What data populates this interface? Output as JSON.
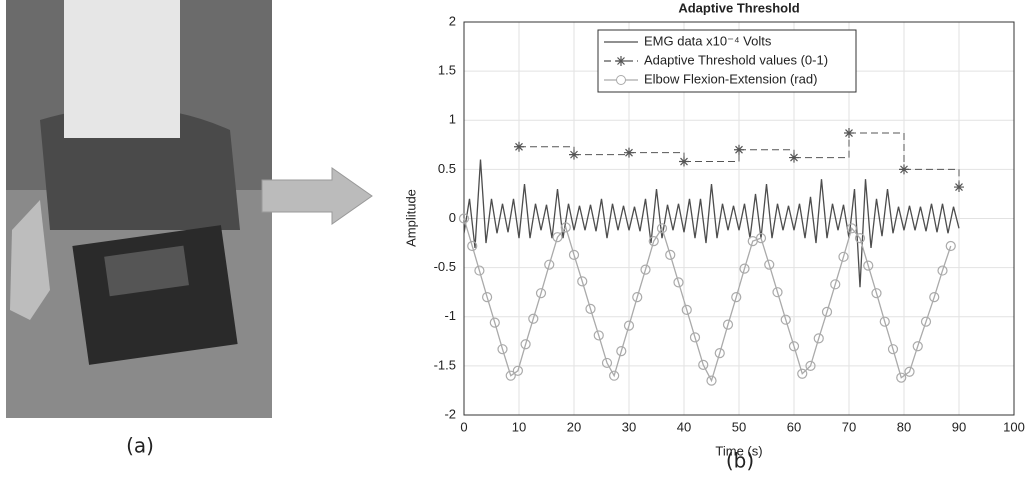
{
  "panel_labels": [
    "(a)",
    "(b)"
  ],
  "chart_data": {
    "type": "line",
    "title": "Adaptive Threshold",
    "xlabel": "Time (s)",
    "ylabel": "Amplitude",
    "xlim": [
      0,
      100
    ],
    "ylim": [
      -2,
      2
    ],
    "xticks": [
      0,
      10,
      20,
      30,
      40,
      50,
      60,
      70,
      80,
      90,
      100
    ],
    "yticks": [
      -2,
      -1.5,
      -1,
      -0.5,
      0,
      0.5,
      1,
      1.5,
      2
    ],
    "grid": true,
    "legend": "top",
    "series": [
      {
        "name": "EMG data x10⁻⁴ Volts",
        "color": "#4d4d4d",
        "style": "line",
        "x": [
          0,
          1,
          2,
          3,
          4,
          5,
          6,
          7,
          8,
          9,
          10,
          11,
          12,
          13,
          14,
          15,
          16,
          17,
          18,
          19,
          20,
          21,
          22,
          23,
          24,
          25,
          26,
          27,
          28,
          29,
          30,
          31,
          32,
          33,
          34,
          35,
          36,
          37,
          38,
          39,
          40,
          41,
          42,
          43,
          44,
          45,
          46,
          47,
          48,
          49,
          50,
          51,
          52,
          53,
          54,
          55,
          56,
          57,
          58,
          59,
          60,
          61,
          62,
          63,
          64,
          65,
          66,
          67,
          68,
          69,
          70,
          71,
          72,
          73,
          74,
          75,
          76,
          77,
          78,
          79,
          80,
          81,
          82,
          83,
          84,
          85,
          86,
          87,
          88,
          89,
          90
        ],
        "values": [
          -0.15,
          0.2,
          -0.3,
          0.6,
          -0.25,
          0.2,
          -0.15,
          0.15,
          -0.14,
          0.2,
          -0.2,
          0.35,
          -0.2,
          0.15,
          -0.12,
          0.14,
          -0.2,
          0.3,
          -0.2,
          0.15,
          -0.12,
          0.13,
          -0.12,
          0.14,
          -0.13,
          0.2,
          -0.2,
          0.15,
          -0.12,
          0.13,
          -0.12,
          0.12,
          -0.13,
          0.2,
          -0.25,
          0.3,
          -0.2,
          0.14,
          -0.12,
          0.15,
          -0.14,
          0.2,
          -0.2,
          0.2,
          -0.25,
          0.35,
          -0.2,
          0.15,
          -0.12,
          0.13,
          -0.12,
          0.15,
          -0.2,
          0.25,
          -0.2,
          0.35,
          -0.2,
          0.15,
          -0.12,
          0.13,
          -0.12,
          0.15,
          -0.2,
          0.22,
          -0.25,
          0.4,
          -0.2,
          0.15,
          -0.12,
          0.14,
          -0.2,
          0.3,
          -0.7,
          0.4,
          -0.3,
          0.2,
          -0.18,
          0.3,
          -0.15,
          0.12,
          -0.12,
          0.13,
          -0.12,
          0.12,
          -0.13,
          0.15,
          -0.14,
          0.15,
          -0.15,
          0.12,
          -0.1
        ]
      },
      {
        "name": "Adaptive Threshold values (0-1)",
        "color": "#555555",
        "style": "step-star",
        "x": [
          10,
          20,
          30,
          40,
          50,
          60,
          70,
          80,
          90
        ],
        "values": [
          0.73,
          0.65,
          0.67,
          0.58,
          0.7,
          0.62,
          0.87,
          0.5,
          0.32
        ]
      },
      {
        "name": "Elbow Flexion-Extension (rad)",
        "color": "#aaaaaa",
        "style": "line-circle",
        "x": [
          0,
          1.5,
          2.8,
          4.2,
          5.6,
          7,
          8.5,
          9.8,
          11.2,
          12.6,
          14,
          15.5,
          17,
          18.5,
          20,
          21.5,
          23,
          24.5,
          26,
          27.3,
          28.6,
          30,
          31.5,
          33,
          34.5,
          36,
          37.5,
          39,
          40.5,
          42,
          43.5,
          45,
          46.5,
          48,
          49.5,
          51,
          52.5,
          54,
          55.5,
          57,
          58.5,
          60,
          61.5,
          63,
          64.5,
          66,
          67.5,
          69,
          70.5,
          72,
          73.5,
          75,
          76.5,
          78,
          79.5,
          81,
          82.5,
          84,
          85.5,
          87,
          88.5
        ],
        "values": [
          0,
          -0.28,
          -0.53,
          -0.8,
          -1.06,
          -1.33,
          -1.6,
          -1.55,
          -1.28,
          -1.02,
          -0.76,
          -0.47,
          -0.19,
          -0.09,
          -0.37,
          -0.64,
          -0.92,
          -1.19,
          -1.47,
          -1.6,
          -1.35,
          -1.09,
          -0.8,
          -0.52,
          -0.23,
          -0.1,
          -0.37,
          -0.65,
          -0.93,
          -1.21,
          -1.49,
          -1.65,
          -1.37,
          -1.08,
          -0.8,
          -0.51,
          -0.23,
          -0.2,
          -0.47,
          -0.75,
          -1.03,
          -1.3,
          -1.58,
          -1.5,
          -1.22,
          -0.95,
          -0.67,
          -0.39,
          -0.1,
          -0.2,
          -0.48,
          -0.76,
          -1.05,
          -1.33,
          -1.62,
          -1.56,
          -1.3,
          -1.05,
          -0.8,
          -0.53,
          -0.28
        ]
      }
    ]
  }
}
